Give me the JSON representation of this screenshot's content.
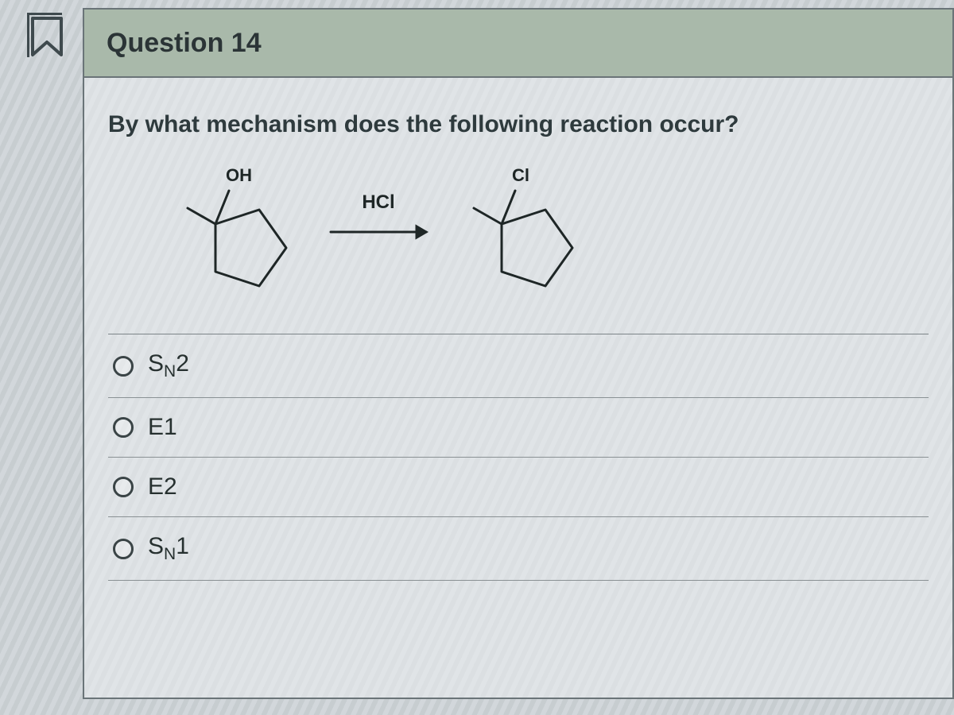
{
  "header": {
    "title": "Question 14"
  },
  "prompt": "By what mechanism does the following reaction occur?",
  "reaction": {
    "reagent": "HCl",
    "left_label": "OH",
    "right_label": "Cl",
    "stroke": "#1e2626",
    "stroke_width": 3
  },
  "options": [
    {
      "id": "opt-sn2",
      "label_html": "S<span class='sub'>N</span>2"
    },
    {
      "id": "opt-e1",
      "label_html": "E1"
    },
    {
      "id": "opt-e2",
      "label_html": "E2"
    },
    {
      "id": "opt-sn1",
      "label_html": "S<span class='sub'>N</span>1"
    }
  ],
  "colors": {
    "header_bg": "#a9b9aa",
    "border": "#6a7478",
    "text": "#2b3436"
  }
}
